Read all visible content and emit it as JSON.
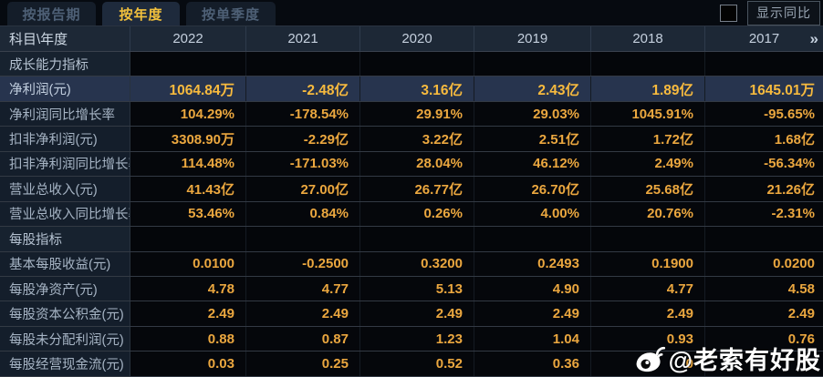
{
  "tabs": [
    {
      "label": "按报告期",
      "active": false
    },
    {
      "label": "按年度",
      "active": true
    },
    {
      "label": "按单季度",
      "active": false
    }
  ],
  "controls": {
    "show_yoy_label": "显示同比",
    "checkbox_checked": false
  },
  "table": {
    "corner_label": "科目\\年度",
    "years": [
      "2022",
      "2021",
      "2020",
      "2019",
      "2018",
      "2017"
    ],
    "more_icon": "»",
    "rows": [
      {
        "type": "section",
        "label": "成长能力指标",
        "values": [
          "",
          "",
          "",
          "",
          "",
          ""
        ]
      },
      {
        "type": "data",
        "highlight": true,
        "label": "净利润(元)",
        "values": [
          "1064.84万",
          "-2.48亿",
          "3.16亿",
          "2.43亿",
          "1.89亿",
          "1645.01万"
        ]
      },
      {
        "type": "data",
        "label": "净利润同比增长率",
        "values": [
          "104.29%",
          "-178.54%",
          "29.91%",
          "29.03%",
          "1045.91%",
          "-95.65%"
        ]
      },
      {
        "type": "data",
        "label": "扣非净利润(元)",
        "values": [
          "3308.90万",
          "-2.29亿",
          "3.22亿",
          "2.51亿",
          "1.72亿",
          "1.68亿"
        ]
      },
      {
        "type": "data",
        "label": "扣非净利润同比增长率",
        "values": [
          "114.48%",
          "-171.03%",
          "28.04%",
          "46.12%",
          "2.49%",
          "-56.34%"
        ]
      },
      {
        "type": "data",
        "label": "营业总收入(元)",
        "values": [
          "41.43亿",
          "27.00亿",
          "26.77亿",
          "26.70亿",
          "25.68亿",
          "21.26亿"
        ]
      },
      {
        "type": "data",
        "label": "营业总收入同比增长率",
        "values": [
          "53.46%",
          "0.84%",
          "0.26%",
          "4.00%",
          "20.76%",
          "-2.31%"
        ]
      },
      {
        "type": "section",
        "label": "每股指标",
        "values": [
          "",
          "",
          "",
          "",
          "",
          ""
        ]
      },
      {
        "type": "data",
        "label": "基本每股收益(元)",
        "values": [
          "0.0100",
          "-0.2500",
          "0.3200",
          "0.2493",
          "0.1900",
          "0.0200"
        ]
      },
      {
        "type": "data",
        "label": "每股净资产(元)",
        "values": [
          "4.78",
          "4.77",
          "5.13",
          "4.90",
          "4.77",
          "4.58"
        ]
      },
      {
        "type": "data",
        "label": "每股资本公积金(元)",
        "values": [
          "2.49",
          "2.49",
          "2.49",
          "2.49",
          "2.49",
          "2.49"
        ]
      },
      {
        "type": "data",
        "label": "每股未分配利润(元)",
        "values": [
          "0.88",
          "0.87",
          "1.23",
          "1.04",
          "0.93",
          "0.76"
        ]
      },
      {
        "type": "data",
        "label": "每股经营现金流(元)",
        "values": [
          "0.03",
          "0.25",
          "0.52",
          "0.36",
          "0",
          ""
        ]
      }
    ]
  },
  "watermark": {
    "handle": "@老索有好股",
    "icon": "weibo-logo"
  },
  "colors": {
    "value_gold": "#eba73f",
    "highlight_row_bg": "#27344e",
    "header_bg": "#1d2836",
    "active_tab_text": "#f3c13d"
  }
}
